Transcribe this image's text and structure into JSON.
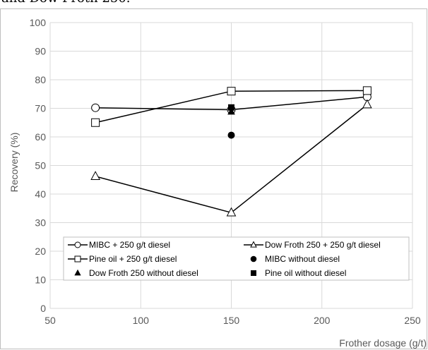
{
  "header_snippet": "and Dow Froth 250.",
  "chart_data": {
    "type": "scatter",
    "title": "",
    "xlabel": "Frother dosage (g/t)",
    "ylabel": "Recovery (%)",
    "xlim": [
      50,
      250
    ],
    "ylim": [
      0,
      100
    ],
    "x_ticks": [
      50,
      100,
      150,
      200,
      250
    ],
    "y_ticks": [
      0,
      10,
      20,
      30,
      40,
      50,
      60,
      70,
      80,
      90,
      100
    ],
    "grid": true,
    "legend_position": "bottom-inside",
    "series": [
      {
        "name": "MIBC + 250 g/t diesel",
        "marker": "circle-open",
        "line": true,
        "x": [
          75,
          150,
          225
        ],
        "y": [
          70.2,
          69.5,
          74
        ]
      },
      {
        "name": "Dow Froth 250 + 250 g/t diesel",
        "marker": "triangle-open",
        "line": true,
        "x": [
          75,
          150,
          225
        ],
        "y": [
          46.2,
          33.5,
          71.3
        ]
      },
      {
        "name": "Pine oil + 250 g/t diesel",
        "marker": "square-open",
        "line": true,
        "x": [
          75,
          150,
          225
        ],
        "y": [
          65,
          76,
          76.2
        ]
      },
      {
        "name": "MIBC without diesel",
        "marker": "circle-filled",
        "line": false,
        "x": [
          150
        ],
        "y": [
          60.6
        ]
      },
      {
        "name": "Dow Froth 250 without diesel",
        "marker": "triangle-filled",
        "line": false,
        "x": [
          150
        ],
        "y": [
          68.8
        ]
      },
      {
        "name": "Pine oil without diesel",
        "marker": "square-filled",
        "line": false,
        "x": [
          150
        ],
        "y": [
          70.3
        ]
      }
    ],
    "colors": {
      "line": "#000000",
      "grid": "#d9d9d9",
      "border": "#bfbfbf",
      "text": "#595959"
    }
  }
}
